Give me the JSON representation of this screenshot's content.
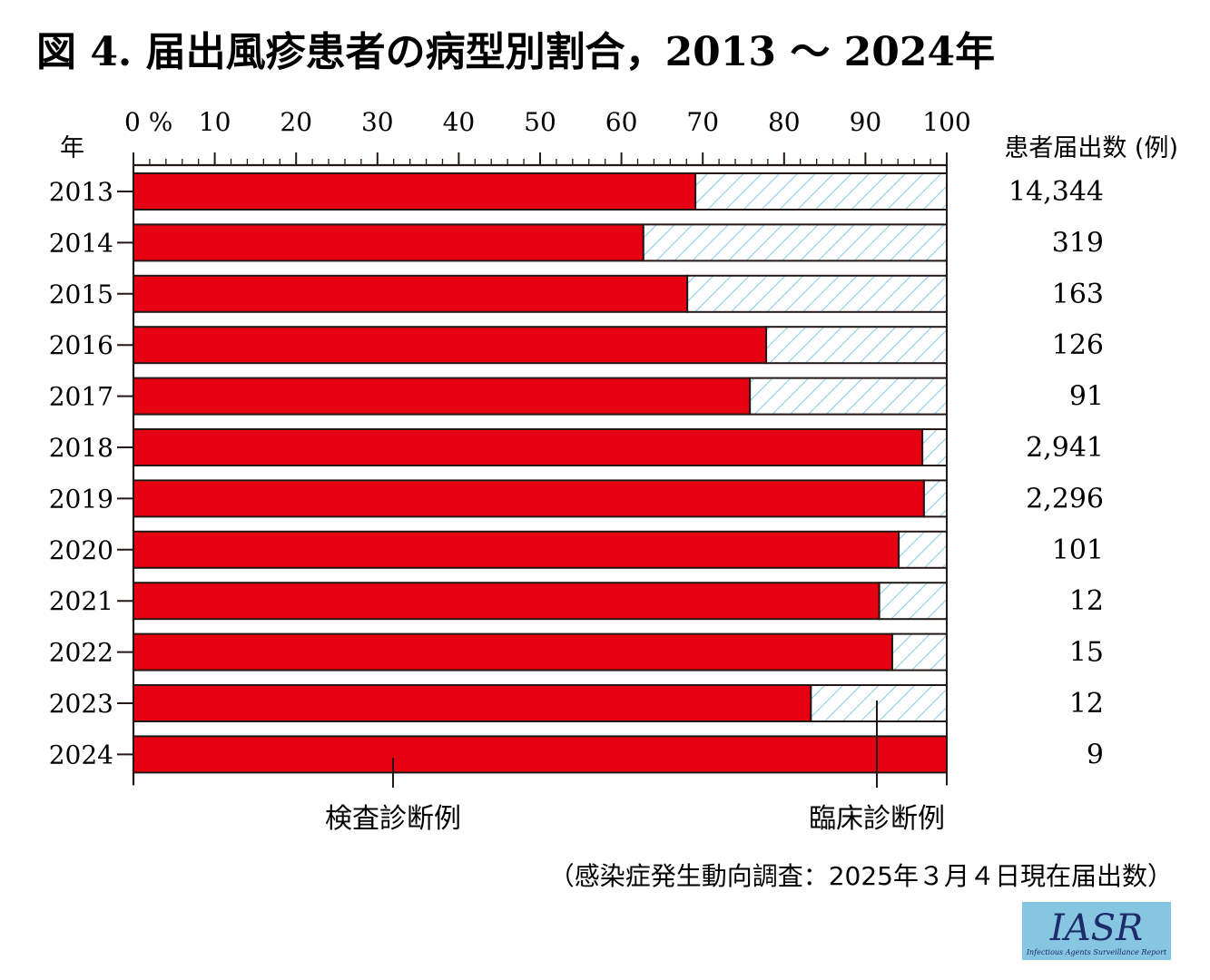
{
  "title": "図 4.  届出風疹患者の病型別割合，2013 〜 2024年",
  "chart_data": {
    "type": "bar",
    "orientation": "horizontal",
    "stacked": true,
    "title": "図 4.  届出風疹患者の病型別割合，2013 〜 2024年",
    "xlim": [
      0,
      100
    ],
    "x_ticks": [
      "0 %",
      "10",
      "20",
      "30",
      "40",
      "50",
      "60",
      "70",
      "80",
      "90",
      "100"
    ],
    "ylabel": "年",
    "count_header": "患者届出数 (例)",
    "categories": [
      "2013",
      "2014",
      "2015",
      "2016",
      "2017",
      "2018",
      "2019",
      "2020",
      "2021",
      "2022",
      "2023",
      "2024"
    ],
    "series": [
      {
        "name": "検査診断例",
        "color": "#e60012",
        "values": [
          69.1,
          62.7,
          68.1,
          77.8,
          75.8,
          97.0,
          97.2,
          94.1,
          91.7,
          93.3,
          83.3,
          100.0
        ]
      },
      {
        "name": "臨床診断例",
        "color": "#a8dcef",
        "values": [
          30.9,
          37.3,
          31.9,
          22.2,
          24.2,
          3.0,
          2.8,
          5.9,
          8.3,
          6.7,
          16.7,
          0.0
        ]
      }
    ],
    "counts": [
      "14,344",
      "319",
      "163",
      "126",
      "91",
      "2,941",
      "2,296",
      "101",
      "12",
      "15",
      "12",
      "9"
    ],
    "legend_placement": "bottom"
  },
  "source": "（感染症発生動向調査：2025年３月４日現在届出数）",
  "logo": {
    "text": "IASR",
    "subtitle": "Infectious Agents Surveillance Report",
    "color": "#7fc3df"
  }
}
